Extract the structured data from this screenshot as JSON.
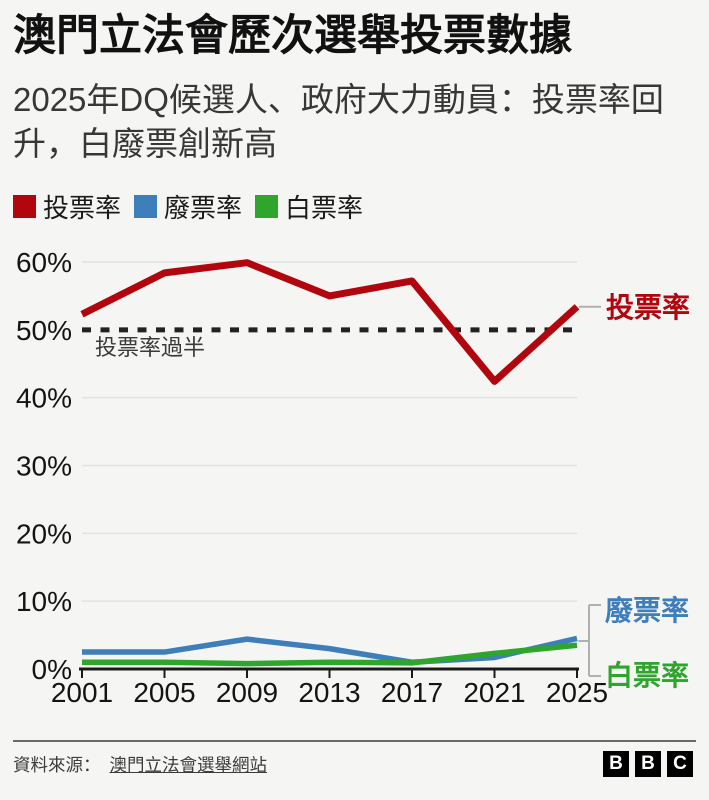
{
  "header": {
    "title": "澳門立法會歷次選舉投票數據",
    "subtitle": "2025年DQ候選人、政府大力動員：投票率回升，白廢票創新高"
  },
  "legend": [
    {
      "label": "投票率",
      "color": "#b2060f"
    },
    {
      "label": "廢票率",
      "color": "#3d7ebb"
    },
    {
      "label": "白票率",
      "color": "#2fa52d"
    }
  ],
  "chart_data": {
    "type": "line",
    "x": [
      2001,
      2005,
      2009,
      2013,
      2017,
      2021,
      2025
    ],
    "series": [
      {
        "name": "投票率",
        "color": "#b2060f",
        "values": [
          52.3,
          58.4,
          59.9,
          55.0,
          57.2,
          42.4,
          53.4
        ]
      },
      {
        "name": "廢票率",
        "color": "#3d7ebb",
        "values": [
          2.5,
          2.5,
          4.4,
          3.0,
          1.0,
          1.7,
          4.5
        ]
      },
      {
        "name": "白票率",
        "color": "#2fa52d",
        "values": [
          1.0,
          1.0,
          0.8,
          1.0,
          0.9,
          2.3,
          3.5
        ]
      }
    ],
    "ylim": [
      0,
      60
    ],
    "ytick_step": 10,
    "ytick_suffix": "%",
    "grid": "horizontal",
    "legend_position": "top",
    "threshold": {
      "value": 50,
      "label": "投票率過半"
    },
    "colors": {
      "background": "#f5f5f3",
      "gridline": "#e2e2e0",
      "axis": "#1a1a1a",
      "threshold_line": "#222222",
      "connector": "#b0b0b0"
    }
  },
  "footer": {
    "source_prefix": "資料來源：",
    "source_link": "澳門立法會選舉網站",
    "logo_letters": [
      "B",
      "B",
      "C"
    ]
  }
}
